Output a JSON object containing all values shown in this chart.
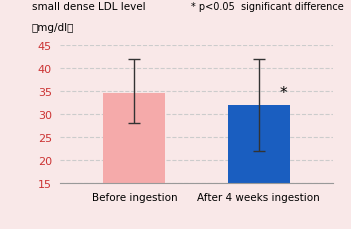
{
  "categories": [
    "Before ingestion",
    "After 4 weeks ingestion"
  ],
  "values": [
    34.5,
    32.0
  ],
  "error_low": [
    6.5,
    10.0
  ],
  "error_high": [
    7.5,
    10.0
  ],
  "bar_colors": [
    "#F5AAAA",
    "#1A5EC0"
  ],
  "title_line1": "small dense LDL level",
  "title_line2": "（mg/dl）",
  "annotation": "* p<0.05  significant difference",
  "significance_marker": "*",
  "ylim": [
    15,
    45
  ],
  "yticks": [
    15,
    20,
    25,
    30,
    35,
    40,
    45
  ],
  "background_color": "#F9E8E8",
  "plot_bg_color": "#F9E8E8",
  "grid_color": "#CCCCCC",
  "tick_color": "#CC3333",
  "bar_width": 0.5,
  "error_cap_size": 4,
  "error_color": "#333333",
  "sig_marker_fontsize": 11
}
